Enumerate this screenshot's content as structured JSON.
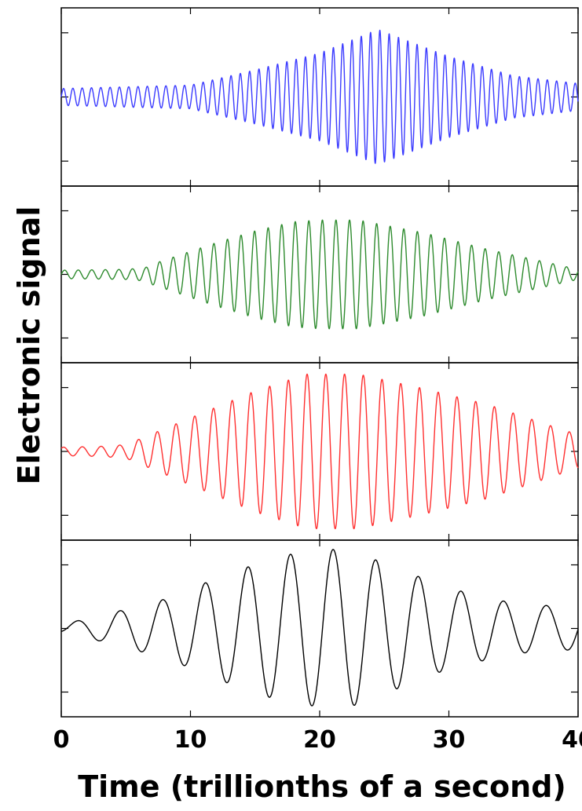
{
  "chart_data": {
    "type": "line",
    "xlabel": "Time (trillionths of a second)",
    "ylabel": "Electronic signal",
    "xlim": [
      0,
      40
    ],
    "ylim": [
      -1,
      1
    ],
    "x_ticks": [
      0,
      10,
      20,
      30,
      40
    ],
    "x_tick_labels": [
      "0",
      "10",
      "20",
      "30",
      "40"
    ],
    "shared_x_axis": true,
    "y_tick_labels_shown": false,
    "grid": false,
    "legend": "none",
    "panels": [
      {
        "color": "#3b3bff",
        "period": 0.72,
        "phase": 0.0,
        "envelope": {
          "t": [
            0,
            5,
            10,
            15,
            20,
            24.5,
            30,
            35,
            40
          ],
          "a": [
            0.1,
            0.12,
            0.14,
            0.32,
            0.52,
            0.8,
            0.48,
            0.25,
            0.16
          ]
        }
      },
      {
        "color": "#2e8b2e",
        "period": 1.05,
        "phase": 0.0,
        "envelope": {
          "t": [
            0,
            5,
            6.5,
            7,
            12,
            15,
            18,
            20,
            23,
            28,
            33,
            38,
            40
          ],
          "a": [
            0.05,
            0.06,
            0.08,
            0.12,
            0.38,
            0.52,
            0.63,
            0.65,
            0.65,
            0.5,
            0.3,
            0.13,
            0.06
          ]
        }
      },
      {
        "color": "#ff3030",
        "period": 1.45,
        "phase": 0.8,
        "envelope": {
          "t": [
            0,
            3,
            5,
            10,
            15,
            19,
            23,
            28,
            33,
            38,
            40
          ],
          "a": [
            0.05,
            0.06,
            0.08,
            0.4,
            0.72,
            0.92,
            0.92,
            0.75,
            0.56,
            0.3,
            0.2
          ]
        }
      },
      {
        "color": "#000000",
        "period": 3.3,
        "phase": -0.8,
        "envelope": {
          "t": [
            0,
            3,
            8,
            13,
            17,
            20.5,
            22.5,
            26,
            30,
            35,
            40
          ],
          "a": [
            0.05,
            0.15,
            0.35,
            0.66,
            0.87,
            0.95,
            0.93,
            0.72,
            0.48,
            0.3,
            0.25
          ]
        }
      }
    ]
  }
}
